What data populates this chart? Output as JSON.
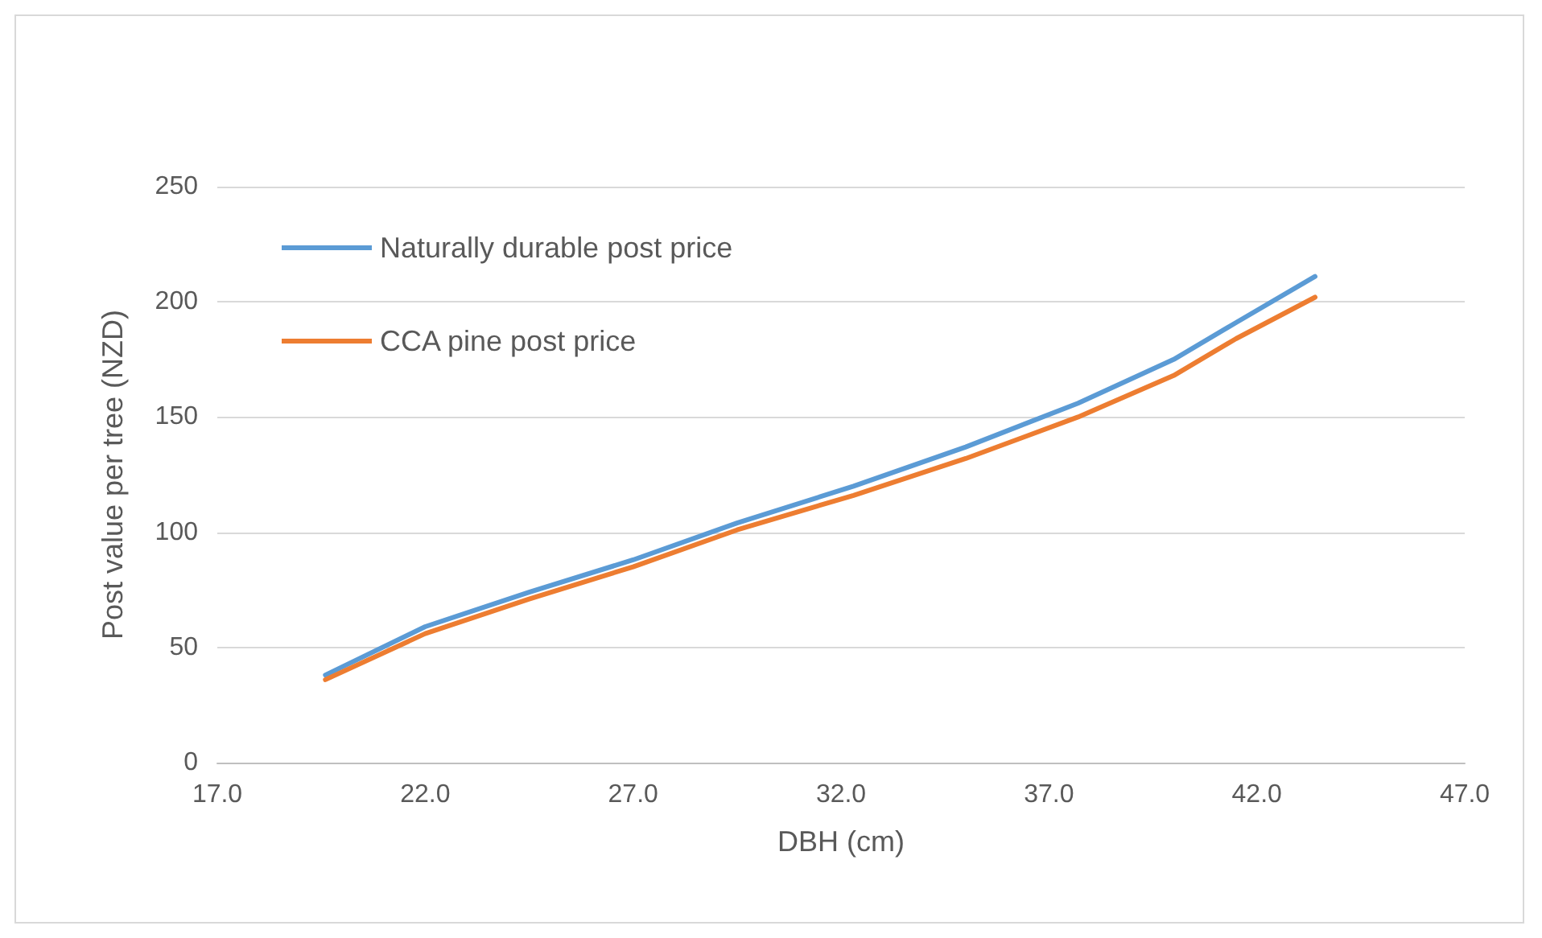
{
  "chart_data": {
    "type": "line",
    "xlabel": "DBH (cm)",
    "ylabel": "Post value per tree (NZD)",
    "x": [
      19.6,
      22,
      24.5,
      27,
      29.5,
      32.3,
      35,
      37.7,
      40,
      41.5,
      43.4
    ],
    "series": [
      {
        "name": "Naturally durable post price",
        "color": "#5b9bd5",
        "values": [
          38,
          59,
          74,
          88,
          104,
          120,
          137,
          156,
          175,
          191,
          211
        ]
      },
      {
        "name": "CCA pine post price",
        "color": "#ed7d31",
        "values": [
          36,
          56,
          71,
          85,
          101,
          116,
          132,
          150,
          168,
          184,
          202
        ]
      }
    ],
    "xlim": [
      17,
      47
    ],
    "xticks": [
      {
        "value": 17,
        "label": "17.0"
      },
      {
        "value": 22,
        "label": "22.0"
      },
      {
        "value": 27,
        "label": "27.0"
      },
      {
        "value": 32,
        "label": "32.0"
      },
      {
        "value": 37,
        "label": "37.0"
      },
      {
        "value": 42,
        "label": "42.0"
      },
      {
        "value": 47,
        "label": "47.0"
      }
    ],
    "ylim": [
      0,
      250
    ],
    "yticks": [
      0,
      50,
      100,
      150,
      200,
      250
    ],
    "grid": "y",
    "legend": "top left",
    "marker": "none",
    "line_style": "solid"
  }
}
